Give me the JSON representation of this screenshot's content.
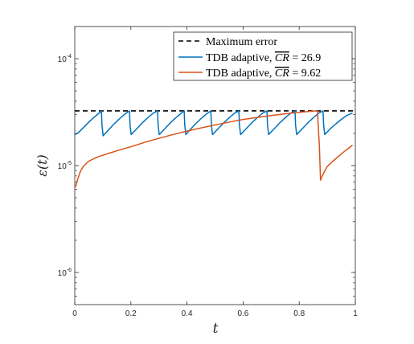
{
  "chart_data": {
    "type": "line",
    "xlabel": "t",
    "ylabel": "ε(t)",
    "xlim": [
      0,
      1
    ],
    "ylim": [
      5e-07,
      0.0002
    ],
    "yscale": "log",
    "x_ticks": [
      0,
      0.2,
      0.4,
      0.6,
      0.8,
      1
    ],
    "x_tick_labels": [
      "0",
      "0.2",
      "0.4",
      "0.6",
      "0.8",
      "1"
    ],
    "y_ticks": [
      1e-06,
      1e-05,
      0.0001
    ],
    "y_tick_labels": [
      {
        "base": "10",
        "exp": "-6"
      },
      {
        "base": "10",
        "exp": "-5"
      },
      {
        "base": "10",
        "exp": "-4"
      }
    ],
    "grid": false,
    "legend_position": "top-right",
    "legend": {
      "max_error": "Maximum error",
      "blue_prefix": "TDB adaptive, ",
      "blue_cr": "CR",
      "blue_value": " = 26.9",
      "orange_prefix": "TDB adaptive, ",
      "orange_cr": "CR",
      "orange_value": " = 9.62"
    },
    "series": [
      {
        "style": "dashed",
        "color": "#000000",
        "x": [
          0,
          1
        ],
        "y": [
          3.25e-05,
          3.25e-05
        ]
      },
      {
        "style": "solid",
        "color": "#0072BD",
        "x": [
          0,
          0.01,
          0.03,
          0.05,
          0.07,
          0.09,
          0.095,
          0.097,
          0.101,
          0.12,
          0.14,
          0.16,
          0.18,
          0.195,
          0.197,
          0.201,
          0.22,
          0.24,
          0.26,
          0.28,
          0.295,
          0.297,
          0.301,
          0.32,
          0.34,
          0.36,
          0.38,
          0.39,
          0.392,
          0.396,
          0.41,
          0.43,
          0.45,
          0.47,
          0.485,
          0.487,
          0.491,
          0.51,
          0.53,
          0.55,
          0.57,
          0.585,
          0.587,
          0.591,
          0.61,
          0.63,
          0.65,
          0.67,
          0.685,
          0.687,
          0.691,
          0.71,
          0.73,
          0.75,
          0.77,
          0.785,
          0.787,
          0.791,
          0.81,
          0.83,
          0.85,
          0.87,
          0.885,
          0.887,
          0.891,
          0.91,
          0.93,
          0.95,
          0.97,
          0.99
        ],
        "y": [
          1.95e-05,
          2e-05,
          2.25e-05,
          2.55e-05,
          2.85e-05,
          3.15e-05,
          3.25e-05,
          2.4e-05,
          1.9e-05,
          2.15e-05,
          2.45e-05,
          2.75e-05,
          3.05e-05,
          3.25e-05,
          2.4e-05,
          1.95e-05,
          2.2e-05,
          2.5e-05,
          2.8e-05,
          3.1e-05,
          3.25e-05,
          2.4e-05,
          1.95e-05,
          2.2e-05,
          2.5e-05,
          2.8e-05,
          3.1e-05,
          3.25e-05,
          2.4e-05,
          1.95e-05,
          2.15e-05,
          2.45e-05,
          2.75e-05,
          3.05e-05,
          3.25e-05,
          2.4e-05,
          1.95e-05,
          2.2e-05,
          2.5e-05,
          2.8e-05,
          3.1e-05,
          3.25e-05,
          2.4e-05,
          1.95e-05,
          2.2e-05,
          2.5e-05,
          2.8e-05,
          3.1e-05,
          3.25e-05,
          2.4e-05,
          1.95e-05,
          2.2e-05,
          2.5e-05,
          2.8e-05,
          3.1e-05,
          3.25e-05,
          2.4e-05,
          1.95e-05,
          2.2e-05,
          2.5e-05,
          2.8e-05,
          3.1e-05,
          3.25e-05,
          2.4e-05,
          1.95e-05,
          2.2e-05,
          2.45e-05,
          2.7e-05,
          2.95e-05,
          3.1e-05
        ]
      },
      {
        "style": "solid",
        "color": "#D95319",
        "x": [
          0,
          0.005,
          0.01,
          0.02,
          0.03,
          0.05,
          0.08,
          0.12,
          0.16,
          0.2,
          0.25,
          0.3,
          0.35,
          0.4,
          0.45,
          0.5,
          0.55,
          0.6,
          0.65,
          0.7,
          0.75,
          0.8,
          0.84,
          0.865,
          0.872,
          0.876,
          0.88,
          0.89,
          0.9,
          0.92,
          0.94,
          0.96,
          0.98,
          0.99
        ],
        "y": [
          6.2e-06,
          6.6e-06,
          7.4e-06,
          8.8e-06,
          9.8e-06,
          1.1e-05,
          1.2e-05,
          1.3e-05,
          1.4e-05,
          1.5e-05,
          1.65e-05,
          1.8e-05,
          1.95e-05,
          2.1e-05,
          2.25e-05,
          2.4e-05,
          2.55e-05,
          2.7e-05,
          2.82e-05,
          2.94e-05,
          3.05e-05,
          3.15e-05,
          3.22e-05,
          3.25e-05,
          1.5e-05,
          7.3e-06,
          7.8e-06,
          8.8e-06,
          9.8e-06,
          1.1e-05,
          1.22e-05,
          1.35e-05,
          1.48e-05,
          1.55e-05
        ]
      }
    ]
  }
}
